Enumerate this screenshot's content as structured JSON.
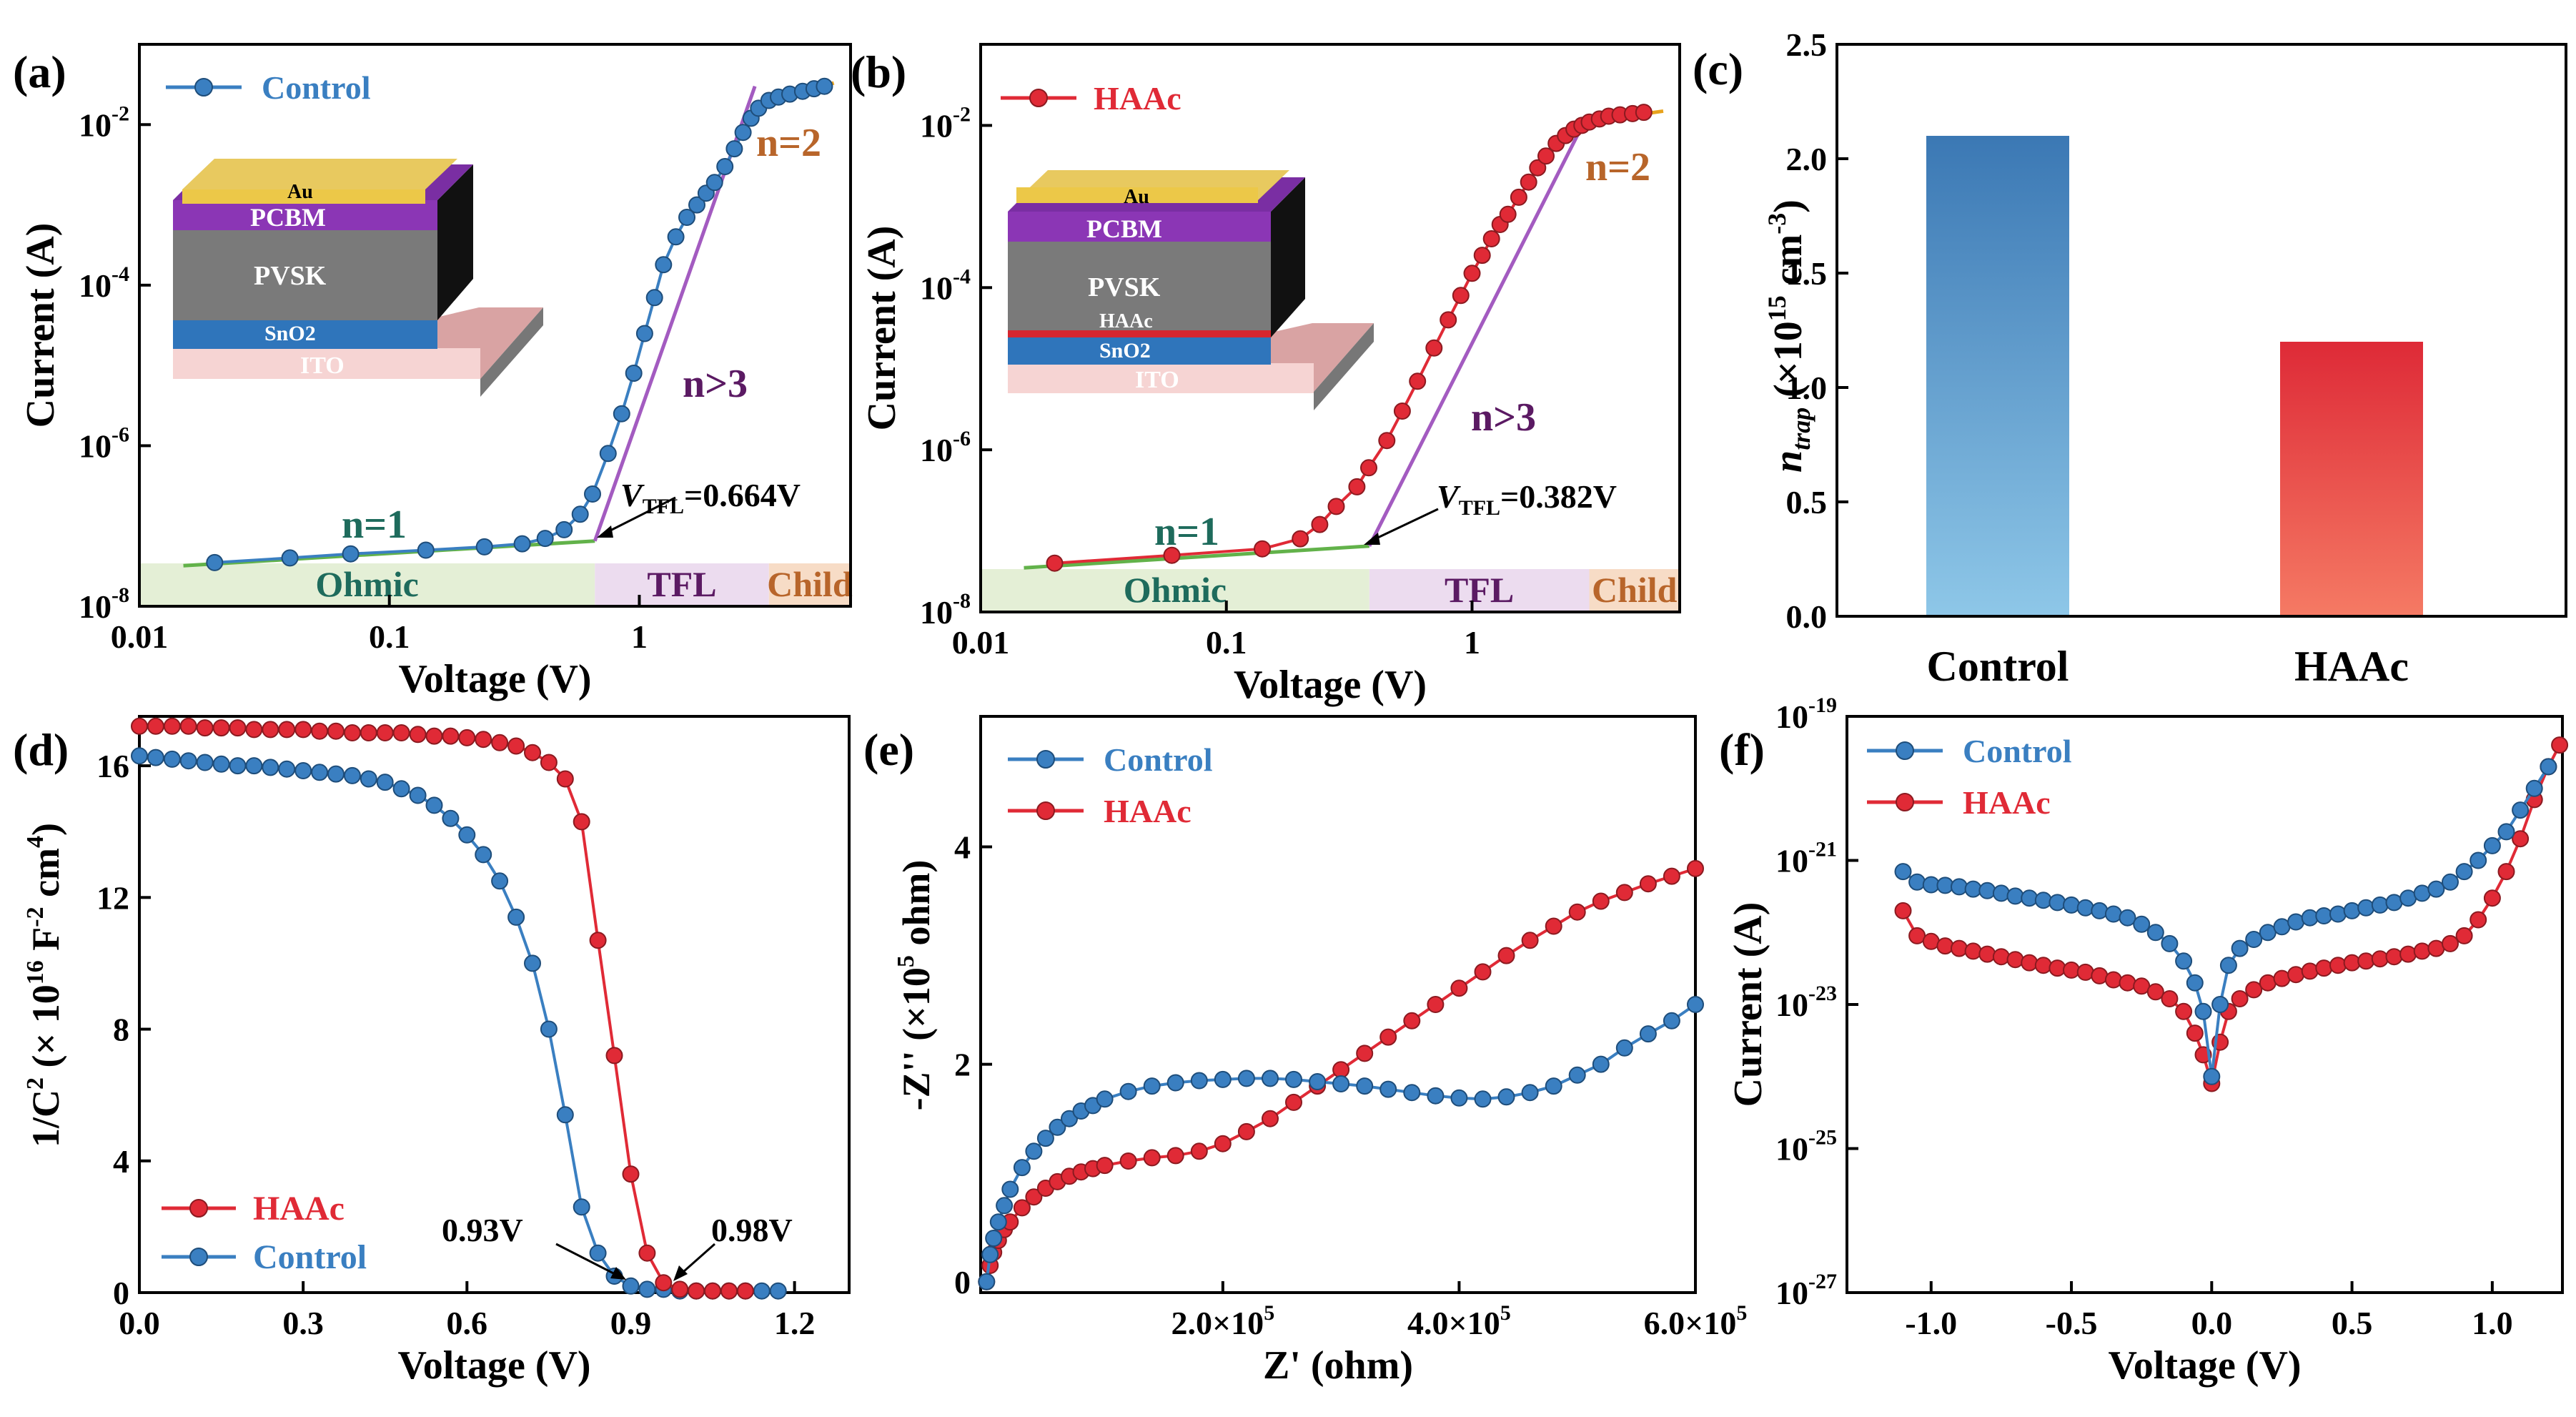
{
  "colors": {
    "control": "#3a7fc1",
    "haac": "#e02a36",
    "fit_green": "#62b24a",
    "fit_purple": "#a35bc0",
    "fit_orange": "#e8a21c",
    "n_purple": "#5b1a63",
    "n_orange": "#b8652a",
    "n_teal": "#1e6b5c",
    "ohmic_bg": "#e4efd6",
    "tfl_bg": "#ecdcef",
    "child_bg": "#f7dcc6"
  },
  "chart_data": [
    {
      "panel": "(a)",
      "type": "line",
      "xscale": "log",
      "yscale": "log",
      "xlabel": "Voltage (V)",
      "ylabel": "Current (A)",
      "xlim": [
        0.01,
        7
      ],
      "ylim": [
        1e-08,
        0.1
      ],
      "xticks": [
        "0.01",
        "0.1",
        "1"
      ],
      "yticks": [
        [
          "-8",
          -8
        ],
        [
          "-6",
          -6
        ],
        [
          "-4",
          -4
        ],
        [
          "-2",
          -2
        ]
      ],
      "series": [
        {
          "name": "Control",
          "color": "#3a7fc1",
          "x": [
            0.02,
            0.04,
            0.07,
            0.14,
            0.24,
            0.34,
            0.42,
            0.5,
            0.58,
            0.65,
            0.75,
            0.85,
            0.95,
            1.05,
            1.15,
            1.25,
            1.4,
            1.55,
            1.7,
            1.85,
            2.0,
            2.2,
            2.4,
            2.6,
            2.8,
            3.0,
            3.3,
            3.6,
            4.0,
            4.5,
            5.0,
            5.5
          ],
          "y": [
            3.5e-08,
            4e-08,
            4.5e-08,
            5e-08,
            5.5e-08,
            6e-08,
            7e-08,
            9e-08,
            1.4e-07,
            2.5e-07,
            8e-07,
            2.5e-06,
            8e-06,
            2.5e-05,
            7e-05,
            0.00018,
            0.0004,
            0.0007,
            0.001,
            0.0014,
            0.0019,
            0.003,
            0.005,
            0.008,
            0.012,
            0.016,
            0.02,
            0.022,
            0.024,
            0.026,
            0.028,
            0.03
          ]
        }
      ],
      "fits": [
        {
          "color": "#62b24a",
          "x": [
            0.015,
            0.664
          ],
          "y": [
            3.2e-08,
            6.5e-08
          ]
        },
        {
          "color": "#a35bc0",
          "x": [
            0.664,
            2.9
          ],
          "y": [
            6.5e-08,
            0.03
          ]
        },
        {
          "color": "#e8a21c",
          "x": [
            2.9,
            6
          ],
          "y": [
            0.016,
            0.033
          ]
        }
      ],
      "legend": "Control",
      "annotations": {
        "n1": "n=1",
        "n2": "n=2",
        "n3": "n>3",
        "vtfl_v": "V",
        "vtfl_sub": "TFL",
        "vtfl_val": "=0.664V",
        "ohmic": "Ohmic",
        "tfl": "TFL",
        "child": "Child"
      },
      "regions": [
        [
          0.01,
          0.664
        ],
        [
          0.664,
          3.3
        ],
        [
          3.3,
          7
        ]
      ],
      "vtfl": 0.664,
      "inset_layers": [
        "Au",
        "PCBM",
        "PVSK",
        "SnO2",
        "ITO"
      ]
    },
    {
      "panel": "(b)",
      "type": "line",
      "xscale": "log",
      "yscale": "log",
      "xlabel": "Voltage (V)",
      "ylabel": "Current (A)",
      "xlim": [
        0.01,
        7
      ],
      "ylim": [
        1e-08,
        0.1
      ],
      "xticks": [
        "0.01",
        "0.1",
        "1"
      ],
      "yticks": [
        [
          "-8",
          -8
        ],
        [
          "-6",
          -6
        ],
        [
          "-4",
          -4
        ],
        [
          "-2",
          -2
        ]
      ],
      "series": [
        {
          "name": "HAAc",
          "color": "#e02a36",
          "x": [
            0.02,
            0.06,
            0.14,
            0.2,
            0.24,
            0.28,
            0.34,
            0.38,
            0.45,
            0.52,
            0.6,
            0.7,
            0.8,
            0.9,
            1.0,
            1.1,
            1.2,
            1.3,
            1.4,
            1.55,
            1.7,
            1.85,
            2.0,
            2.2,
            2.4,
            2.6,
            2.8,
            3.0,
            3.3,
            3.6,
            4.0,
            4.5,
            5.0
          ],
          "y": [
            4e-08,
            5e-08,
            6e-08,
            8e-08,
            1.2e-07,
            2e-07,
            3.5e-07,
            6e-07,
            1.3e-06,
            3e-06,
            7e-06,
            1.8e-05,
            4e-05,
            8e-05,
            0.00015,
            0.00025,
            0.0004,
            0.0006,
            0.0008,
            0.0013,
            0.002,
            0.003,
            0.0042,
            0.006,
            0.0075,
            0.009,
            0.01,
            0.011,
            0.012,
            0.013,
            0.0135,
            0.014,
            0.0145
          ]
        }
      ],
      "fits": [
        {
          "color": "#62b24a",
          "x": [
            0.015,
            0.382
          ],
          "y": [
            3.5e-08,
            6.5e-08
          ]
        },
        {
          "color": "#a35bc0",
          "x": [
            0.382,
            2.9
          ],
          "y": [
            6.5e-08,
            0.012
          ]
        },
        {
          "color": "#e8a21c",
          "x": [
            2.9,
            6
          ],
          "y": [
            0.011,
            0.015
          ]
        }
      ],
      "legend": "HAAc",
      "annotations": {
        "n1": "n=1",
        "n2": "n=2",
        "n3": "n>3",
        "vtfl_v": "V",
        "vtfl_sub": "TFL",
        "vtfl_val": "=0.382V",
        "ohmic": "Ohmic",
        "tfl": "TFL",
        "child": "Child"
      },
      "regions": [
        [
          0.01,
          0.382
        ],
        [
          0.382,
          3.0
        ],
        [
          3.0,
          7
        ]
      ],
      "vtfl": 0.382,
      "inset_layers": [
        "Au",
        "PCBM",
        "PVSK",
        "HAAc",
        "SnO2",
        "ITO"
      ]
    },
    {
      "panel": "(c)",
      "type": "bar",
      "categories": [
        "Control",
        "HAAc"
      ],
      "values": [
        2.1,
        1.2
      ],
      "ylim": [
        0,
        2.5
      ],
      "yticks": [
        "0.0",
        "0.5",
        "1.0",
        "1.5",
        "2.0",
        "2.5"
      ],
      "ylabel_main": "n",
      "ylabel_sub": "trap",
      "ylabel_rest": " (×10",
      "ylabel_exp": "15",
      "ylabel_unit": " cm",
      "ylabel_unit_exp": "-3",
      "ylabel_close": ")"
    },
    {
      "panel": "(d)",
      "type": "line",
      "xlabel": "Voltage (V)",
      "xlim": [
        0,
        1.3
      ],
      "ylim": [
        0,
        17.5
      ],
      "xticks": [
        "0.0",
        "0.3",
        "0.6",
        "0.9",
        "1.2"
      ],
      "yticks": [
        "0",
        "4",
        "8",
        "12",
        "16"
      ],
      "ylabel_a": "1/C",
      "ylabel_a_exp": "2",
      "ylabel_b": " (× 10",
      "ylabel_b_exp": "16",
      "ylabel_c": " F",
      "ylabel_c_exp": "-2",
      "ylabel_d": " cm",
      "ylabel_d_exp": "4",
      "ylabel_e": ")",
      "series": [
        {
          "name": "HAAc",
          "color": "#e02a36",
          "x": [
            0.0,
            0.03,
            0.06,
            0.09,
            0.12,
            0.15,
            0.18,
            0.21,
            0.24,
            0.27,
            0.3,
            0.33,
            0.36,
            0.39,
            0.42,
            0.45,
            0.48,
            0.51,
            0.54,
            0.57,
            0.6,
            0.63,
            0.66,
            0.69,
            0.72,
            0.75,
            0.78,
            0.81,
            0.84,
            0.87,
            0.9,
            0.93,
            0.96,
            0.99,
            1.02,
            1.05,
            1.08,
            1.11
          ],
          "y": [
            17.2,
            17.2,
            17.2,
            17.2,
            17.15,
            17.15,
            17.15,
            17.1,
            17.1,
            17.1,
            17.1,
            17.05,
            17.05,
            17.0,
            17.0,
            17.0,
            17.0,
            16.95,
            16.9,
            16.9,
            16.85,
            16.8,
            16.7,
            16.6,
            16.4,
            16.1,
            15.6,
            14.3,
            10.7,
            7.2,
            3.6,
            1.2,
            0.3,
            0.1,
            0.05,
            0.05,
            0.05,
            0.05
          ]
        },
        {
          "name": "Control",
          "color": "#3a7fc1",
          "x": [
            0.0,
            0.03,
            0.06,
            0.09,
            0.12,
            0.15,
            0.18,
            0.21,
            0.24,
            0.27,
            0.3,
            0.33,
            0.36,
            0.39,
            0.42,
            0.45,
            0.48,
            0.51,
            0.54,
            0.57,
            0.6,
            0.63,
            0.66,
            0.69,
            0.72,
            0.75,
            0.78,
            0.81,
            0.84,
            0.87,
            0.9,
            0.93,
            0.96,
            0.99,
            1.02,
            1.05,
            1.08,
            1.11,
            1.14,
            1.17
          ],
          "y": [
            16.3,
            16.25,
            16.2,
            16.15,
            16.1,
            16.05,
            16.0,
            16.0,
            15.95,
            15.9,
            15.85,
            15.8,
            15.75,
            15.7,
            15.6,
            15.5,
            15.3,
            15.1,
            14.8,
            14.4,
            13.9,
            13.3,
            12.5,
            11.4,
            10.0,
            8.0,
            5.4,
            2.6,
            1.2,
            0.5,
            0.2,
            0.1,
            0.1,
            0.05,
            0.05,
            0.05,
            0.05,
            0.05,
            0.05,
            0.05
          ]
        }
      ],
      "legend": [
        "HAAc",
        "Control"
      ],
      "annotations": [
        "0.93V",
        "0.98V"
      ]
    },
    {
      "panel": "(e)",
      "type": "line",
      "xlabel": "Z' (ohm)",
      "ylabel_a": "-Z'' (×10",
      "ylabel_exp": "5",
      "ylabel_b": " ohm)",
      "xlim": [
        -0.05,
        6.0
      ],
      "ylim": [
        -0.1,
        5.2
      ],
      "xticks": [
        [
          "2.0×10",
          "5",
          2.0
        ],
        [
          "4.0×10",
          "5",
          4.0
        ],
        [
          "6.0×10",
          "5",
          6.0
        ]
      ],
      "yticks": [
        "0",
        "2",
        "4"
      ],
      "series": [
        {
          "name": "Control",
          "color": "#3a7fc1",
          "x": [
            0.0,
            0.03,
            0.06,
            0.1,
            0.15,
            0.2,
            0.3,
            0.4,
            0.5,
            0.6,
            0.7,
            0.8,
            0.9,
            1.0,
            1.2,
            1.4,
            1.6,
            1.8,
            2.0,
            2.2,
            2.4,
            2.6,
            2.8,
            3.0,
            3.2,
            3.4,
            3.6,
            3.8,
            4.0,
            4.2,
            4.4,
            4.6,
            4.8,
            5.0,
            5.2,
            5.4,
            5.6,
            5.8,
            6.0
          ],
          "y": [
            0.0,
            0.25,
            0.4,
            0.55,
            0.7,
            0.85,
            1.05,
            1.2,
            1.32,
            1.42,
            1.5,
            1.57,
            1.62,
            1.68,
            1.75,
            1.8,
            1.83,
            1.85,
            1.86,
            1.87,
            1.87,
            1.86,
            1.84,
            1.82,
            1.8,
            1.77,
            1.74,
            1.71,
            1.69,
            1.68,
            1.7,
            1.74,
            1.8,
            1.9,
            2.0,
            2.15,
            2.28,
            2.4,
            2.55
          ]
        },
        {
          "name": "HAAc",
          "color": "#e02a36",
          "x": [
            0.0,
            0.03,
            0.06,
            0.1,
            0.15,
            0.2,
            0.3,
            0.4,
            0.5,
            0.6,
            0.7,
            0.8,
            0.9,
            1.0,
            1.2,
            1.4,
            1.6,
            1.8,
            2.0,
            2.2,
            2.4,
            2.6,
            2.8,
            3.0,
            3.2,
            3.4,
            3.6,
            3.8,
            4.0,
            4.2,
            4.4,
            4.6,
            4.8,
            5.0,
            5.2,
            5.4,
            5.6,
            5.8,
            6.0
          ],
          "y": [
            0.0,
            0.15,
            0.27,
            0.38,
            0.48,
            0.55,
            0.68,
            0.78,
            0.86,
            0.92,
            0.97,
            1.01,
            1.04,
            1.07,
            1.11,
            1.14,
            1.16,
            1.2,
            1.27,
            1.38,
            1.5,
            1.65,
            1.8,
            1.95,
            2.1,
            2.25,
            2.4,
            2.55,
            2.7,
            2.85,
            3.0,
            3.14,
            3.27,
            3.4,
            3.5,
            3.58,
            3.66,
            3.73,
            3.8
          ]
        }
      ],
      "legend": [
        "Control",
        "HAAc"
      ]
    },
    {
      "panel": "(f)",
      "type": "line",
      "yscale": "log",
      "xlabel": "Voltage (V)",
      "ylabel": "Current (A)",
      "xlim": [
        -1.3,
        1.25
      ],
      "ylim": [
        1e-27,
        1e-19
      ],
      "xticks": [
        "-1.0",
        "-0.5",
        "0.0",
        "0.5",
        "1.0"
      ],
      "yticks": [
        [
          "-27",
          -27
        ],
        [
          "-25",
          -25
        ],
        [
          "-23",
          -23
        ],
        [
          "-21",
          -21
        ],
        [
          "-19",
          -19
        ]
      ],
      "series": [
        {
          "name": "Control",
          "color": "#3a7fc1",
          "x": [
            -1.1,
            -1.05,
            -1.0,
            -0.95,
            -0.9,
            -0.85,
            -0.8,
            -0.75,
            -0.7,
            -0.65,
            -0.6,
            -0.55,
            -0.5,
            -0.45,
            -0.4,
            -0.35,
            -0.3,
            -0.25,
            -0.2,
            -0.15,
            -0.1,
            -0.06,
            -0.03,
            0.0,
            0.03,
            0.06,
            0.1,
            0.15,
            0.2,
            0.25,
            0.3,
            0.35,
            0.4,
            0.45,
            0.5,
            0.55,
            0.6,
            0.65,
            0.7,
            0.75,
            0.8,
            0.85,
            0.9,
            0.95,
            1.0,
            1.05,
            1.1,
            1.15,
            1.2
          ],
          "y": [
            7e-22,
            5e-22,
            4.6e-22,
            4.5e-22,
            4.3e-22,
            4e-22,
            3.8e-22,
            3.5e-22,
            3.2e-22,
            3e-22,
            2.8e-22,
            2.6e-22,
            2.4e-22,
            2.2e-22,
            2e-22,
            1.8e-22,
            1.6e-22,
            1.3e-22,
            1e-22,
            7e-23,
            4e-23,
            2e-23,
            8e-24,
            1e-24,
            1e-23,
            3.5e-23,
            6e-23,
            8e-23,
            1e-22,
            1.2e-22,
            1.4e-22,
            1.6e-22,
            1.7e-22,
            1.8e-22,
            2e-22,
            2.2e-22,
            2.4e-22,
            2.6e-22,
            3e-22,
            3.5e-22,
            4e-22,
            5e-22,
            7e-22,
            1e-21,
            1.6e-21,
            2.5e-21,
            5e-21,
            1e-20,
            2e-20
          ]
        },
        {
          "name": "HAAc",
          "color": "#e02a36",
          "x": [
            -1.1,
            -1.05,
            -1.0,
            -0.95,
            -0.9,
            -0.85,
            -0.8,
            -0.75,
            -0.7,
            -0.65,
            -0.6,
            -0.55,
            -0.5,
            -0.45,
            -0.4,
            -0.35,
            -0.3,
            -0.25,
            -0.2,
            -0.15,
            -0.1,
            -0.06,
            -0.03,
            0.0,
            0.03,
            0.06,
            0.1,
            0.15,
            0.2,
            0.25,
            0.3,
            0.35,
            0.4,
            0.45,
            0.5,
            0.55,
            0.6,
            0.65,
            0.7,
            0.75,
            0.8,
            0.85,
            0.9,
            0.95,
            1.0,
            1.05,
            1.1,
            1.15,
            1.2,
            1.24
          ],
          "y": [
            2e-22,
            9e-23,
            7.5e-23,
            6.5e-23,
            6e-23,
            5.5e-23,
            5e-23,
            4.6e-23,
            4.2e-23,
            3.8e-23,
            3.5e-23,
            3.2e-23,
            3e-23,
            2.8e-23,
            2.5e-23,
            2.2e-23,
            2e-23,
            1.8e-23,
            1.5e-23,
            1.2e-23,
            8e-24,
            4e-24,
            2e-24,
            8e-25,
            3e-24,
            8e-24,
            1.2e-23,
            1.6e-23,
            2e-23,
            2.3e-23,
            2.6e-23,
            2.9e-23,
            3.2e-23,
            3.5e-23,
            3.8e-23,
            4e-23,
            4.3e-23,
            4.6e-23,
            5e-23,
            5.5e-23,
            6e-23,
            7e-23,
            9e-23,
            1.5e-22,
            3e-22,
            7e-22,
            2e-21,
            7e-21,
            2e-20,
            4e-20
          ]
        }
      ],
      "legend": [
        "Control",
        "HAAc"
      ]
    }
  ]
}
